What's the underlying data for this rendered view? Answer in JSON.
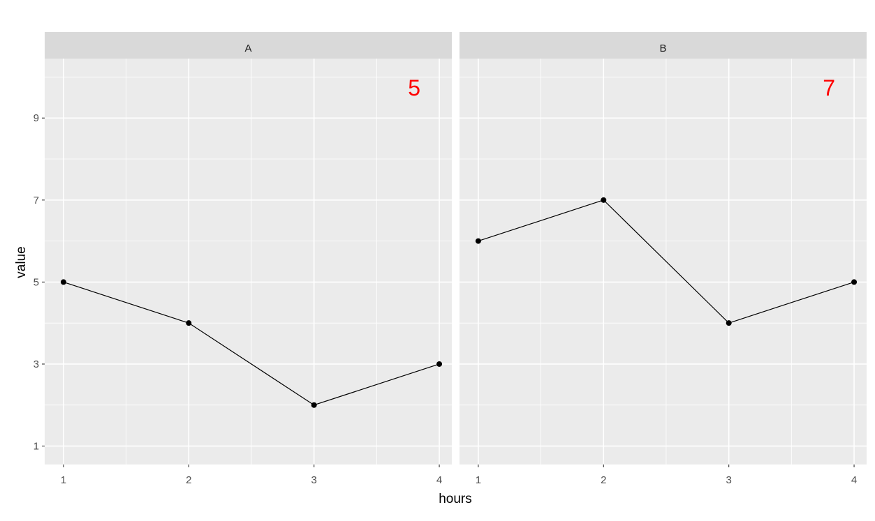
{
  "chart_data": {
    "type": "line",
    "xlabel": "hours",
    "ylabel": "value",
    "x": [
      1,
      2,
      3,
      4
    ],
    "x_ticks": [
      "1",
      "2",
      "3",
      "4"
    ],
    "y_ticks": [
      "1",
      "3",
      "5",
      "7",
      "9"
    ],
    "xlim": [
      0.85,
      4.1
    ],
    "ylim": [
      0.55,
      10.45
    ],
    "grid": true,
    "facets": [
      {
        "label": "A",
        "values": [
          5,
          4,
          2,
          3
        ],
        "annotation": "5"
      },
      {
        "label": "B",
        "values": [
          6,
          7,
          4,
          5
        ],
        "annotation": "7"
      }
    ],
    "annotation_color": "#ff0000",
    "line_color": "#000000",
    "panel_background": "#ebebeb",
    "strip_background": "#d9d9d9"
  }
}
